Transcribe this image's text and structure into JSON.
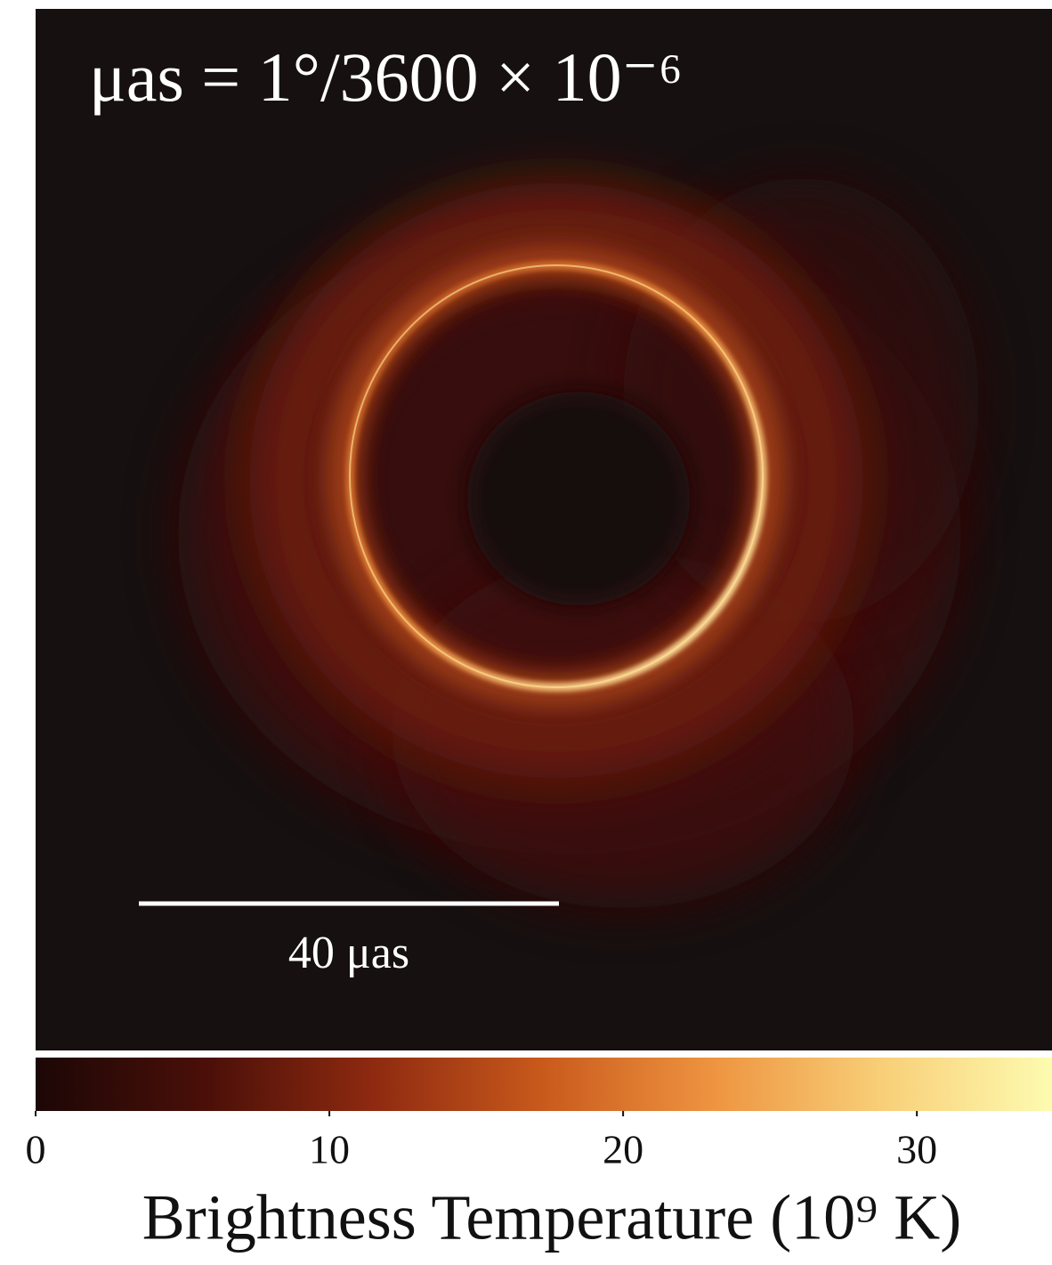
{
  "chart_data": {
    "type": "image",
    "annotation": "μas = 1°/3600 × 10⁻⁶",
    "scale_bar_label": "40 μas",
    "colorbar_label": "Brightness Temperature (10⁹ K)",
    "clim": [
      0,
      34.6
    ],
    "cticks": [
      0,
      10,
      20,
      30
    ],
    "colormap": [
      "#1c0706",
      "#4a0f08",
      "#8e2a10",
      "#c95a1c",
      "#ee9440",
      "#f8cf78",
      "#fdfbb0"
    ]
  }
}
